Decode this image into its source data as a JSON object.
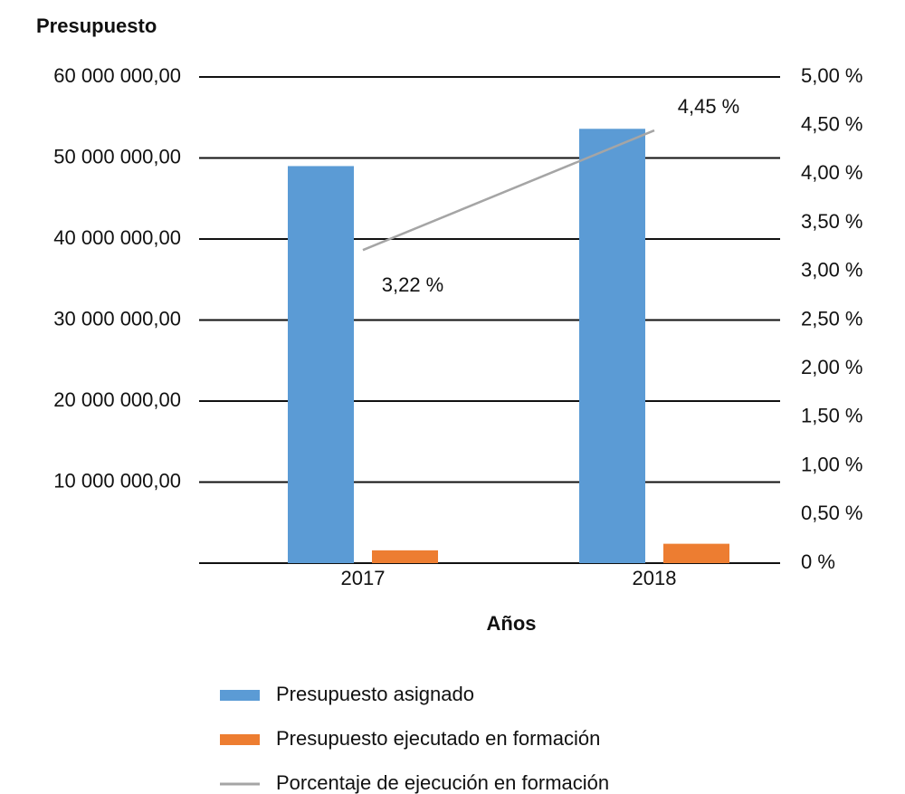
{
  "chart_data": {
    "type": "bar_line",
    "y_label": "Presupuesto",
    "x_label": "Años",
    "categories": [
      "2017",
      "2018"
    ],
    "series": [
      {
        "name": "Presupuesto asignado",
        "color": "#5b9bd5",
        "type": "bar",
        "values": [
          49000000,
          53600000
        ]
      },
      {
        "name": "Presupuesto ejecutado en formación",
        "color": "#ed7d31",
        "type": "bar",
        "values": [
          1580000,
          2390000
        ]
      },
      {
        "name": "Porcentaje de ejecución en formación",
        "color": "#a5a5a5",
        "type": "line",
        "axis": "y2",
        "values": [
          3.22,
          4.45
        ],
        "value_labels": [
          "3,22 %",
          "4,45 %"
        ]
      }
    ],
    "ylim": [
      0,
      60000000
    ],
    "yticks": [
      {
        "value": 10000000,
        "label": "10 000 000,00"
      },
      {
        "value": 20000000,
        "label": "20 000 000,00"
      },
      {
        "value": 30000000,
        "label": "30 000 000,00"
      },
      {
        "value": 40000000,
        "label": "40 000 000,00"
      },
      {
        "value": 50000000,
        "label": "50 000 000,00"
      },
      {
        "value": 60000000,
        "label": "60 000 000,00"
      }
    ],
    "y2lim": [
      0,
      5
    ],
    "y2ticks": [
      {
        "value": 0,
        "label": "0 %"
      },
      {
        "value": 0.5,
        "label": "0,50 %"
      },
      {
        "value": 1,
        "label": "1,00 %"
      },
      {
        "value": 1.5,
        "label": "1,50 %"
      },
      {
        "value": 2,
        "label": "2,00 %"
      },
      {
        "value": 2.5,
        "label": "2,50 %"
      },
      {
        "value": 3,
        "label": "3,00 %"
      },
      {
        "value": 3.5,
        "label": "3,50 %"
      },
      {
        "value": 4,
        "label": "4,00 %"
      },
      {
        "value": 4.5,
        "label": "4,50 %"
      },
      {
        "value": 5,
        "label": "5,00 %"
      }
    ],
    "grid": true
  }
}
